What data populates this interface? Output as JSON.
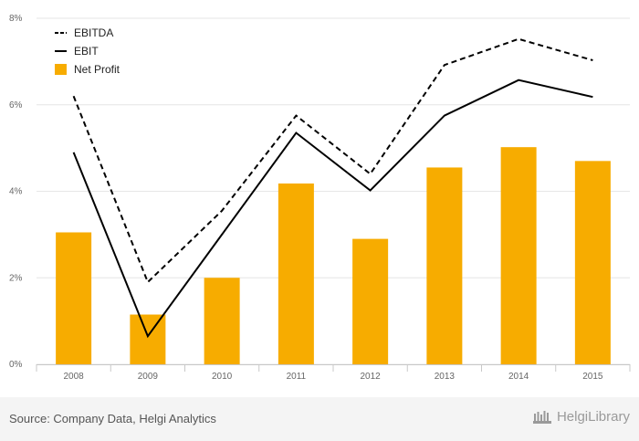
{
  "chart_data": {
    "type": "bar",
    "categories": [
      "2008",
      "2009",
      "2010",
      "2011",
      "2012",
      "2013",
      "2014",
      "2015"
    ],
    "series": [
      {
        "name": "Net Profit",
        "type": "bar",
        "color": "#f7ac00",
        "values": [
          3.05,
          1.15,
          2.0,
          4.18,
          2.9,
          4.55,
          5.02,
          4.7
        ]
      },
      {
        "name": "EBITDA",
        "type": "line",
        "style": "dashed",
        "color": "#000000",
        "values": [
          6.2,
          1.9,
          3.55,
          5.75,
          4.4,
          6.92,
          7.52,
          7.03
        ]
      },
      {
        "name": "EBIT",
        "type": "line",
        "style": "solid",
        "color": "#000000",
        "values": [
          4.9,
          0.65,
          3.0,
          5.35,
          4.02,
          5.75,
          6.57,
          6.18
        ]
      }
    ],
    "yticks": [
      "0%",
      "2%",
      "4%",
      "6%",
      "8%"
    ],
    "ylim": [
      0,
      8
    ],
    "grid": true,
    "legend_position": "top-left",
    "legend": [
      "EBITDA",
      "EBIT",
      "Net Profit"
    ]
  },
  "footer": {
    "source": "Source: Company Data, Helgi Analytics",
    "brand": "HelgiLibrary"
  }
}
